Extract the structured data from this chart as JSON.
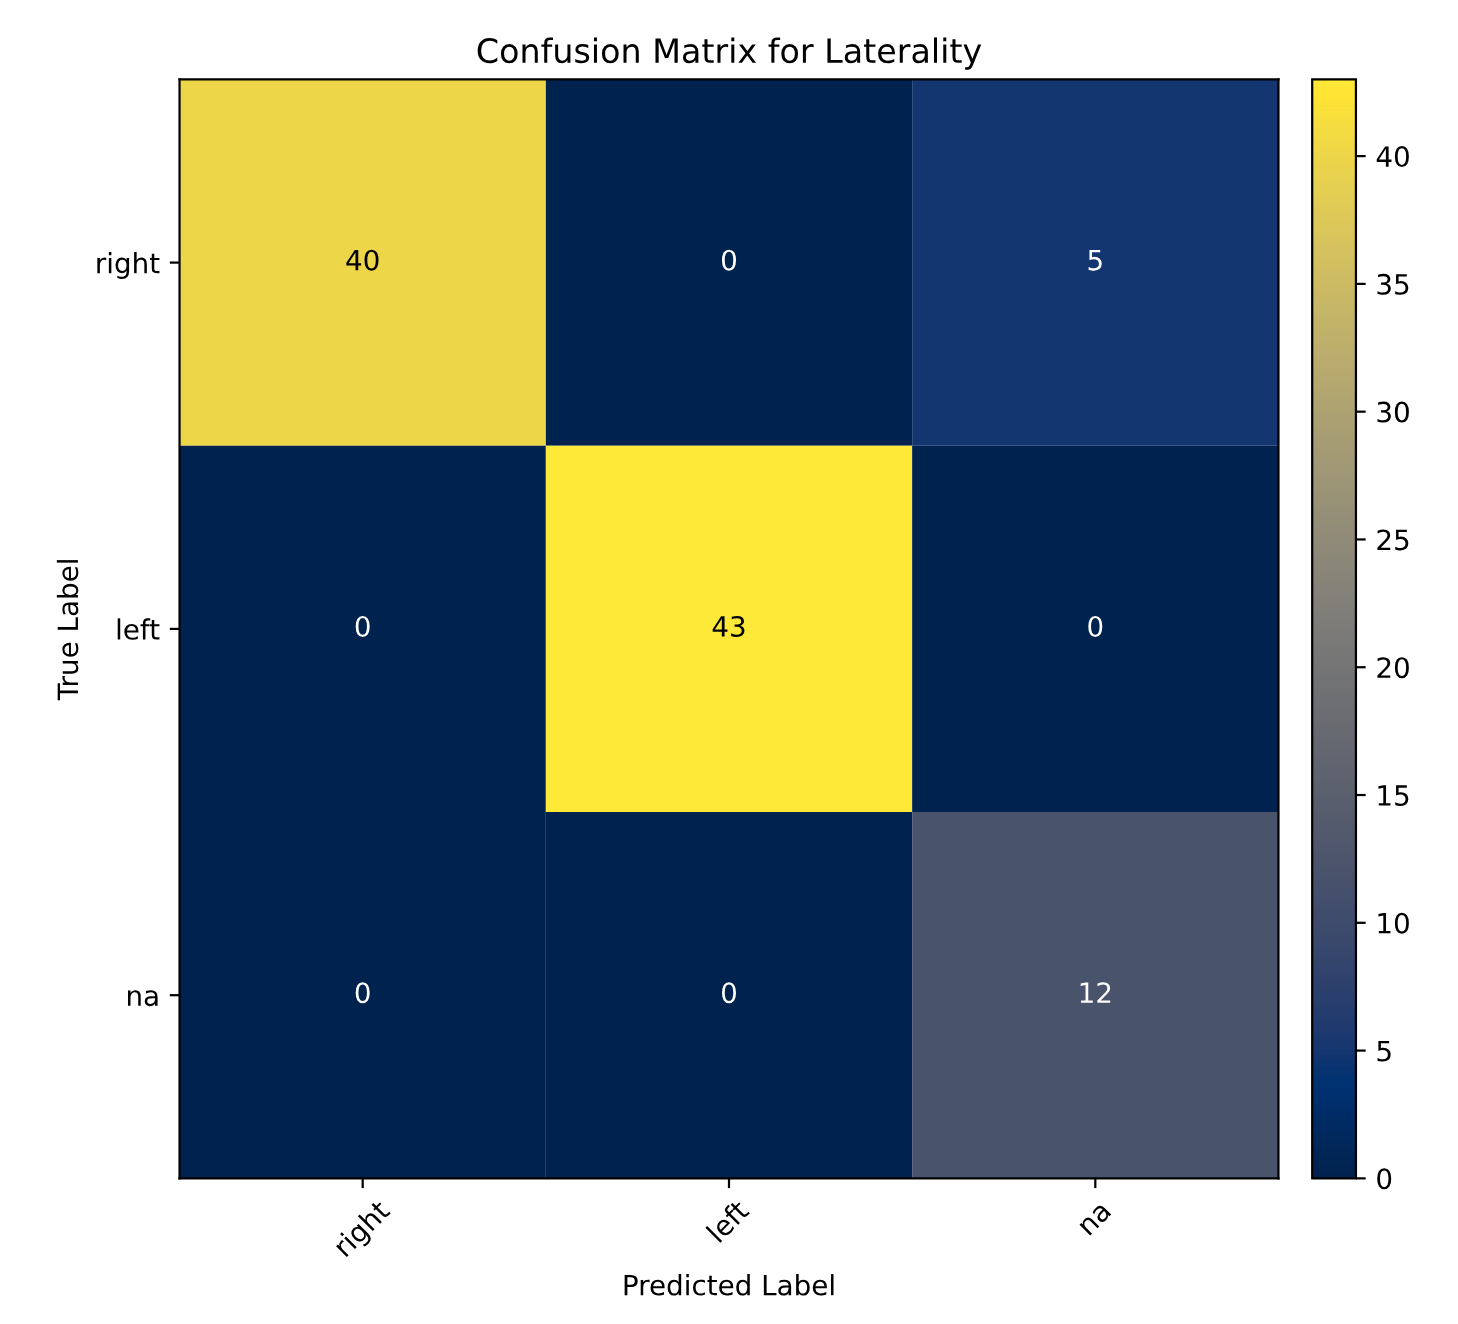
{
  "chart_data": {
    "type": "heatmap",
    "title": "Confusion Matrix for Laterality",
    "xlabel": "Predicted Label",
    "ylabel": "True Label",
    "categories": [
      "right",
      "left",
      "na"
    ],
    "y_categories": [
      "right",
      "left",
      "na"
    ],
    "cells": [
      [
        40,
        0,
        5
      ],
      [
        0,
        43,
        0
      ],
      [
        0,
        0,
        12
      ]
    ],
    "clim": [
      0,
      43
    ],
    "cticks": [
      0,
      5,
      10,
      15,
      20,
      25,
      30,
      35,
      40
    ],
    "data_labels": true
  }
}
